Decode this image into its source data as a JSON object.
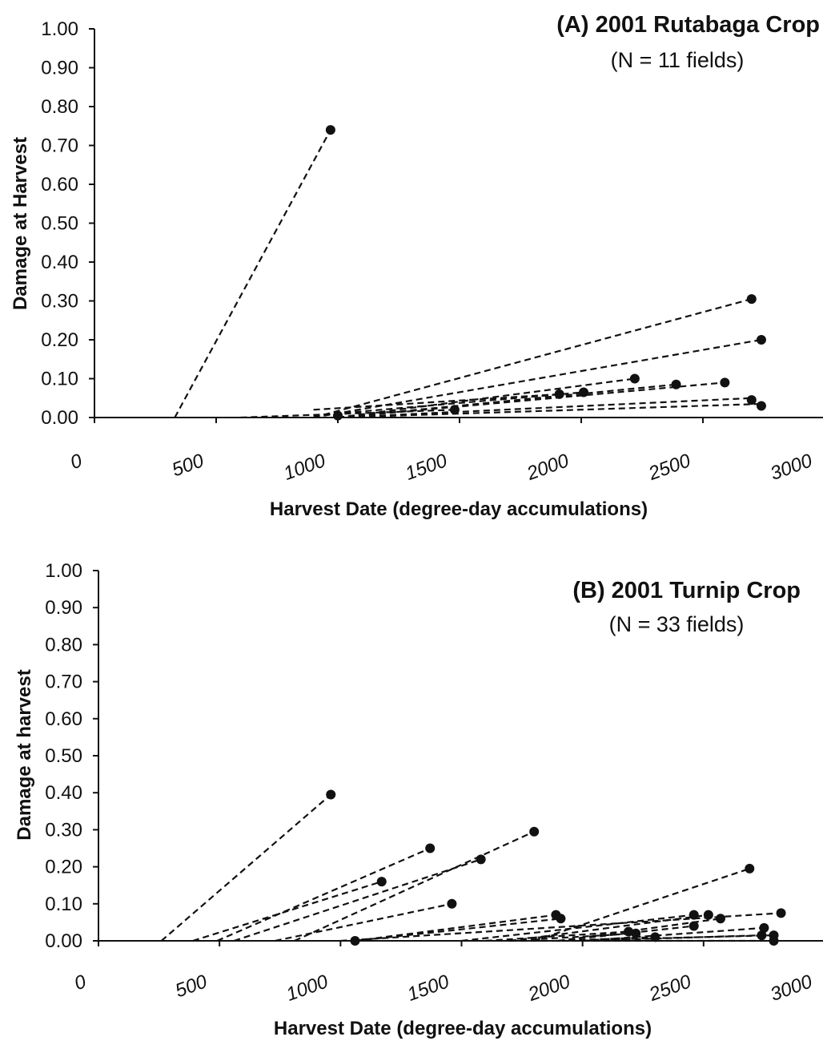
{
  "chart_data": [
    {
      "id": "A",
      "type": "scatter",
      "title": "(A) 2001 Rutabaga Crop",
      "subtitle": "(N = 11 fields)",
      "xlabel": "Harvest Date (degree-day accumulations)",
      "ylabel": "Damage at Harvest",
      "xlim": [
        0,
        3000
      ],
      "ylim": [
        0,
        1.0
      ],
      "xticks": [
        "0",
        "500",
        "1000",
        "1500",
        "2000",
        "2500",
        "3000"
      ],
      "yticks": [
        "0.00",
        "0.10",
        "0.20",
        "0.30",
        "0.40",
        "0.50",
        "0.60",
        "0.70",
        "0.80",
        "0.90",
        "1.00"
      ],
      "points": [
        {
          "x": 970,
          "y": 0.74
        },
        {
          "x": 1000,
          "y": 0.005
        },
        {
          "x": 1480,
          "y": 0.02
        },
        {
          "x": 1910,
          "y": 0.06
        },
        {
          "x": 2010,
          "y": 0.065
        },
        {
          "x": 2220,
          "y": 0.1
        },
        {
          "x": 2390,
          "y": 0.085
        },
        {
          "x": 2590,
          "y": 0.09
        },
        {
          "x": 2700,
          "y": 0.305
        },
        {
          "x": 2740,
          "y": 0.2
        },
        {
          "x": 2700,
          "y": 0.045
        },
        {
          "x": 2740,
          "y": 0.03
        }
      ],
      "trend_lines": [
        {
          "x": [
            330,
            970
          ],
          "y": [
            0,
            0.74
          ]
        },
        {
          "x": [
            600,
            1480
          ],
          "y": [
            0,
            0.02
          ]
        },
        {
          "x": [
            900,
            2700
          ],
          "y": [
            0,
            0.305
          ]
        },
        {
          "x": [
            900,
            2740
          ],
          "y": [
            0,
            0.2
          ]
        },
        {
          "x": [
            900,
            1910
          ],
          "y": [
            0.02,
            0.06
          ]
        },
        {
          "x": [
            900,
            2010
          ],
          "y": [
            0.005,
            0.065
          ]
        },
        {
          "x": [
            1000,
            2220
          ],
          "y": [
            0,
            0.1
          ]
        },
        {
          "x": [
            1000,
            2390
          ],
          "y": [
            0,
            0.085
          ]
        },
        {
          "x": [
            1000,
            2590
          ],
          "y": [
            0,
            0.09
          ]
        },
        {
          "x": [
            1000,
            2700
          ],
          "y": [
            0,
            0.05
          ]
        },
        {
          "x": [
            1000,
            2740
          ],
          "y": [
            0,
            0.035
          ]
        }
      ]
    },
    {
      "id": "B",
      "type": "scatter",
      "title": "(B) 2001 Turnip Crop",
      "subtitle": "(N = 33 fields)",
      "xlabel": "Harvest Date (degree-day accumulations)",
      "ylabel": "Damage at harvest",
      "xlim": [
        0,
        3000
      ],
      "ylim": [
        0,
        1.0
      ],
      "xticks": [
        "0",
        "500",
        "1000",
        "1500",
        "2000",
        "2500",
        "3000"
      ],
      "yticks": [
        "0.00",
        "0.10",
        "0.20",
        "0.30",
        "0.40",
        "0.50",
        "0.60",
        "0.70",
        "0.80",
        "0.90",
        "1.00"
      ],
      "points": [
        {
          "x": 960,
          "y": 0.395
        },
        {
          "x": 1060,
          "y": 0.0
        },
        {
          "x": 1170,
          "y": 0.16
        },
        {
          "x": 1370,
          "y": 0.25
        },
        {
          "x": 1460,
          "y": 0.1
        },
        {
          "x": 1580,
          "y": 0.22
        },
        {
          "x": 1800,
          "y": 0.295
        },
        {
          "x": 1890,
          "y": 0.07
        },
        {
          "x": 1910,
          "y": 0.06
        },
        {
          "x": 2190,
          "y": 0.025
        },
        {
          "x": 2220,
          "y": 0.02
        },
        {
          "x": 2300,
          "y": 0.01
        },
        {
          "x": 2460,
          "y": 0.07
        },
        {
          "x": 2460,
          "y": 0.04
        },
        {
          "x": 2520,
          "y": 0.07
        },
        {
          "x": 2570,
          "y": 0.06
        },
        {
          "x": 2690,
          "y": 0.195
        },
        {
          "x": 2750,
          "y": 0.035
        },
        {
          "x": 2740,
          "y": 0.015
        },
        {
          "x": 2790,
          "y": 0.015
        },
        {
          "x": 2790,
          "y": 0.0
        },
        {
          "x": 2820,
          "y": 0.075
        }
      ],
      "trend_lines": [
        {
          "x": [
            260,
            960
          ],
          "y": [
            0,
            0.395
          ]
        },
        {
          "x": [
            490,
            1370
          ],
          "y": [
            0,
            0.25
          ]
        },
        {
          "x": [
            390,
            1170
          ],
          "y": [
            0,
            0.16
          ]
        },
        {
          "x": [
            560,
            1580
          ],
          "y": [
            0,
            0.22
          ]
        },
        {
          "x": [
            810,
            1800
          ],
          "y": [
            0,
            0.295
          ]
        },
        {
          "x": [
            730,
            1460
          ],
          "y": [
            0,
            0.1
          ]
        },
        {
          "x": [
            1060,
            1890
          ],
          "y": [
            0,
            0.07
          ]
        },
        {
          "x": [
            1060,
            1910
          ],
          "y": [
            0,
            0.06
          ]
        },
        {
          "x": [
            1000,
            2820
          ],
          "y": [
            0,
            0.075
          ]
        },
        {
          "x": [
            1500,
            2460
          ],
          "y": [
            0,
            0.07
          ]
        },
        {
          "x": [
            1800,
            2690
          ],
          "y": [
            0,
            0.195
          ]
        },
        {
          "x": [
            1700,
            2520
          ],
          "y": [
            0,
            0.07
          ]
        },
        {
          "x": [
            1900,
            2570
          ],
          "y": [
            0,
            0.06
          ]
        },
        {
          "x": [
            1900,
            2460
          ],
          "y": [
            0,
            0.04
          ]
        },
        {
          "x": [
            1600,
            2190
          ],
          "y": [
            0,
            0.025
          ]
        },
        {
          "x": [
            1700,
            2220
          ],
          "y": [
            0,
            0.02
          ]
        },
        {
          "x": [
            1900,
            2300
          ],
          "y": [
            0,
            0.01
          ]
        },
        {
          "x": [
            2000,
            2750
          ],
          "y": [
            0,
            0.035
          ]
        },
        {
          "x": [
            2000,
            2740
          ],
          "y": [
            0,
            0.015
          ]
        },
        {
          "x": [
            1900,
            2790
          ],
          "y": [
            0,
            0.015
          ]
        },
        {
          "x": [
            1700,
            2790
          ],
          "y": [
            0,
            0.0
          ]
        }
      ]
    }
  ]
}
